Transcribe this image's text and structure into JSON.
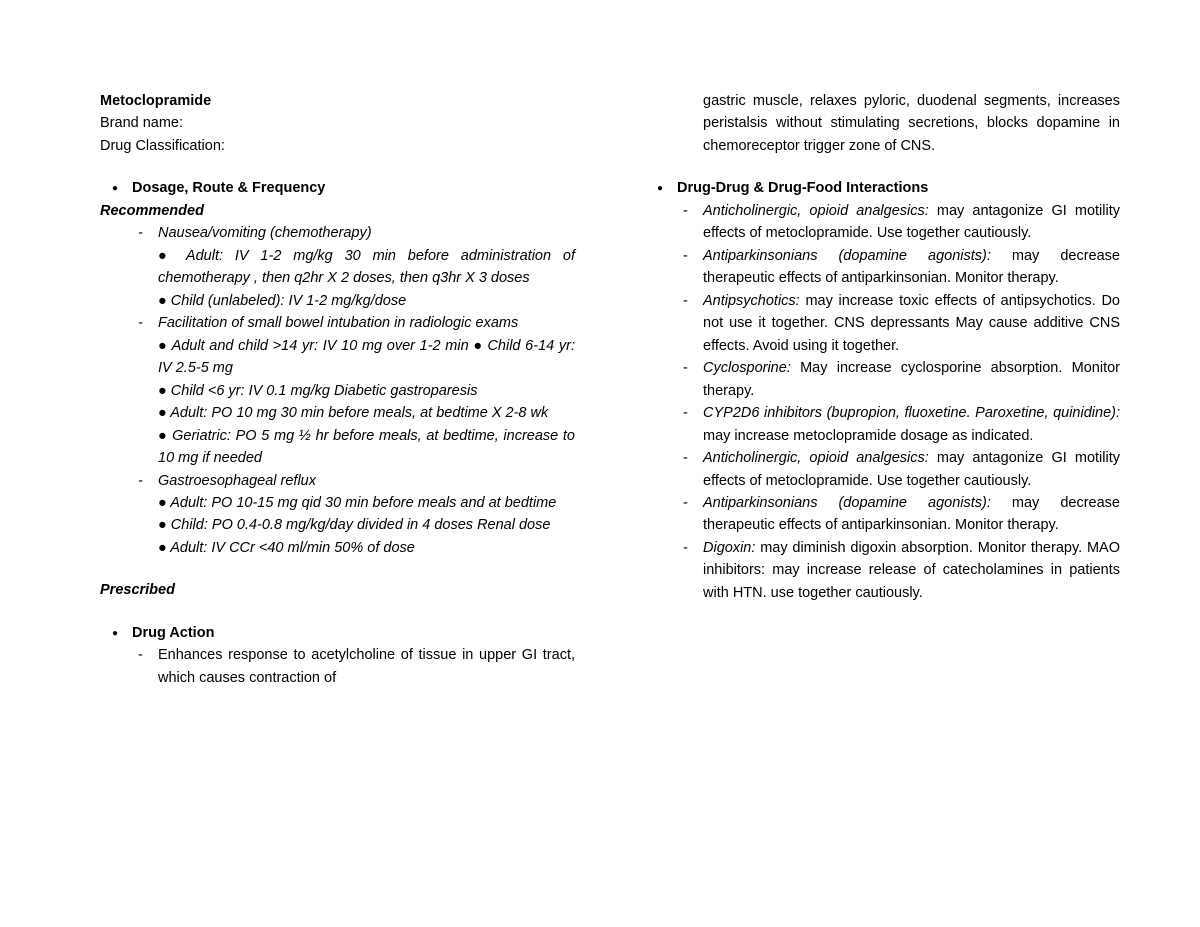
{
  "left": {
    "drug_name": "Metoclopramide",
    "brand_label": "Brand name:",
    "class_label": "Drug Classification:",
    "section1": "Dosage, Route & Frequency",
    "recommended": "Recommended",
    "d1": "Nausea/vomiting (chemotherapy)",
    "d1a": "Adult: IV 1-2 mg/kg 30 min before administration of chemotherapy , then q2hr X 2 doses, then q3hr X 3 doses",
    "d1b": "Child (unlabeled): IV 1-2 mg/kg/dose",
    "d2": "Facilitation of small bowel intubation in radiologic exams",
    "d2a": "Adult and child >14 yr: IV 10 mg over 1-2 min ● Child 6-14 yr: IV 2.5-5 mg",
    "d2b": "Child <6 yr: IV 0.1 mg/kg Diabetic gastroparesis",
    "d2c": " Adult: PO 10 mg 30 min before meals, at bedtime X 2-8 wk",
    "d2d": "Geriatric: PO 5 mg ½ hr before meals, at bedtime, increase to 10 mg if needed",
    "d3": "Gastroesophageal reflux",
    "d3a": "Adult: PO 10-15 mg qid 30 min before meals and at bedtime",
    "d3b": "Child: PO 0.4-0.8 mg/kg/day divided in 4 doses Renal dose",
    "d3c": "Adult: IV CCr <40 ml/min 50% of dose",
    "prescribed": "Prescribed",
    "section2": "Drug Action",
    "action_text": "Enhances response to acetylcholine of tissue in upper GI tract, which causes contraction of"
  },
  "right": {
    "action_cont": "gastric muscle, relaxes pyloric, duodenal segments, increases peristalsis without stimulating secretions, blocks dopamine in chemoreceptor trigger zone of CNS.",
    "section3": "Drug-Drug & Drug-Food Interactions",
    "i1a": "Anticholinergic, opioid analgesics:",
    "i1b": " may antagonize GI motility effects of metoclopramide. Use together cautiously.",
    "i2a": "Antiparkinsonians (dopamine agonists):",
    "i2b": " may decrease therapeutic effects of antiparkinsonian. Monitor therapy.",
    "i3a": "Antipsychotics:",
    "i3b": " may increase toxic effects of antipsychotics. Do not use it together. CNS depressants May cause additive CNS effects. Avoid using it together.",
    "i4a": "Cyclosporine:",
    "i4b": " May increase cyclosporine absorption. Monitor therapy.",
    "i5a": "CYP2D6 inhibitors (bupropion, fluoxetine. Paroxetine, quinidine):",
    "i5b": " may increase metoclopramide dosage as indicated.",
    "i6a": "Anticholinergic, opioid analgesics:",
    "i6b": " may antagonize GI motility effects of metoclopramide. Use together cautiously.",
    "i7a": "Antiparkinsonians (dopamine agonists):",
    "i7b": " may decrease therapeutic effects of antiparkinsonian. Monitor therapy.",
    "i8a": "Digoxin:",
    "i8b": " may diminish digoxin absorption. Monitor therapy. MAO inhibitors: may increase release of catecholamines in patients with HTN. use together cautiously."
  }
}
